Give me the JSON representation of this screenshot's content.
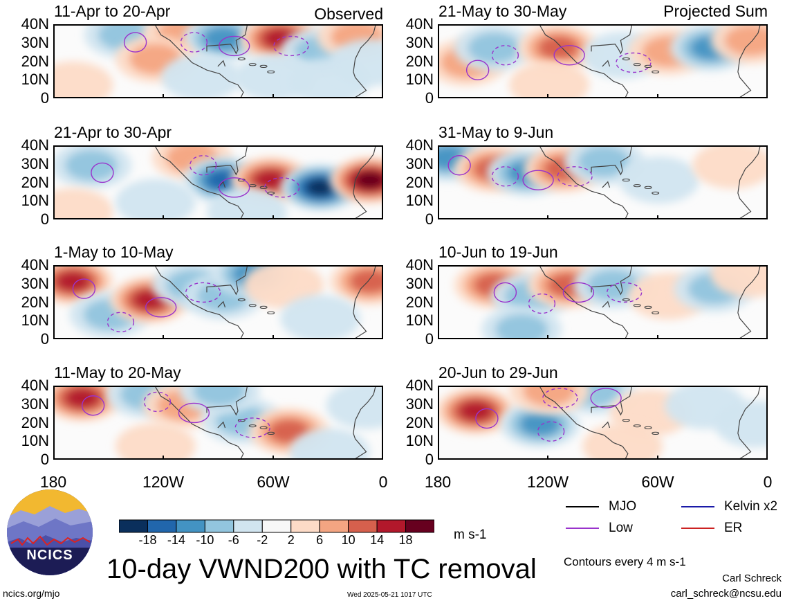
{
  "header": {
    "observed_label": "Observed",
    "projected_label": "Projected Sum"
  },
  "chart_data": [
    {
      "type": "heatmap",
      "title": "11-Apr to 20-Apr",
      "section": "observed",
      "anomalies": [
        {
          "lon": -142,
          "lat": 35,
          "v": -6
        },
        {
          "lon": -110,
          "lat": 35,
          "v": 8
        },
        {
          "lon": -88,
          "lat": 33,
          "v": -10
        },
        {
          "lon": -57,
          "lat": 33,
          "v": 14
        },
        {
          "lon": -35,
          "lat": 26,
          "v": -6
        },
        {
          "lon": -15,
          "lat": 34,
          "v": 8
        },
        {
          "lon": -170,
          "lat": 8,
          "v": 4
        },
        {
          "lon": -125,
          "lat": 22,
          "v": 6
        },
        {
          "lon": -100,
          "lat": 12,
          "v": -4
        },
        {
          "lon": -60,
          "lat": 12,
          "v": -4
        },
        {
          "lon": -30,
          "lat": 10,
          "v": -4
        },
        {
          "lon": -8,
          "lat": 20,
          "v": -4
        }
      ]
    },
    {
      "type": "heatmap",
      "title": "21-Apr to 30-Apr",
      "section": "observed",
      "anomalies": [
        {
          "lon": -160,
          "lat": 30,
          "v": -6
        },
        {
          "lon": -105,
          "lat": 34,
          "v": 8
        },
        {
          "lon": -88,
          "lat": 22,
          "v": -14
        },
        {
          "lon": -62,
          "lat": 22,
          "v": 16
        },
        {
          "lon": -35,
          "lat": 18,
          "v": -18
        },
        {
          "lon": -8,
          "lat": 22,
          "v": 18
        },
        {
          "lon": -170,
          "lat": 5,
          "v": 4
        },
        {
          "lon": -125,
          "lat": 10,
          "v": -4
        },
        {
          "lon": -75,
          "lat": 5,
          "v": -4
        }
      ]
    },
    {
      "type": "heatmap",
      "title": "1-May to 10-May",
      "section": "observed",
      "anomalies": [
        {
          "lon": -170,
          "lat": 32,
          "v": 14
        },
        {
          "lon": -150,
          "lat": 14,
          "v": -8
        },
        {
          "lon": -128,
          "lat": 22,
          "v": 14
        },
        {
          "lon": -105,
          "lat": 30,
          "v": -6
        },
        {
          "lon": -88,
          "lat": 24,
          "v": -8
        },
        {
          "lon": -72,
          "lat": 36,
          "v": -12
        },
        {
          "lon": -55,
          "lat": 30,
          "v": 4
        },
        {
          "lon": -8,
          "lat": 32,
          "v": 12
        },
        {
          "lon": -35,
          "lat": 12,
          "v": -4
        }
      ]
    },
    {
      "type": "heatmap",
      "title": "11-May to 20-May",
      "section": "observed",
      "anomalies": [
        {
          "lon": -165,
          "lat": 34,
          "v": 16
        },
        {
          "lon": -130,
          "lat": 36,
          "v": -8
        },
        {
          "lon": -110,
          "lat": 30,
          "v": 6
        },
        {
          "lon": -78,
          "lat": 22,
          "v": -8
        },
        {
          "lon": -52,
          "lat": 16,
          "v": 12
        },
        {
          "lon": -90,
          "lat": 38,
          "v": -6
        },
        {
          "lon": -10,
          "lat": 30,
          "v": -4
        },
        {
          "lon": -125,
          "lat": 8,
          "v": 4
        },
        {
          "lon": -30,
          "lat": 5,
          "v": -4
        }
      ]
    },
    {
      "type": "heatmap",
      "title": "21-May to 30-May",
      "section": "projected",
      "anomalies": [
        {
          "lon": -165,
          "lat": 20,
          "v": 6
        },
        {
          "lon": -150,
          "lat": 28,
          "v": -6
        },
        {
          "lon": -115,
          "lat": 28,
          "v": 12
        },
        {
          "lon": -80,
          "lat": 24,
          "v": -4
        },
        {
          "lon": -55,
          "lat": 26,
          "v": 6
        },
        {
          "lon": -32,
          "lat": 28,
          "v": -10
        },
        {
          "lon": -10,
          "lat": 32,
          "v": 6
        },
        {
          "lon": -120,
          "lat": 8,
          "v": 4
        }
      ]
    },
    {
      "type": "heatmap",
      "title": "31-May to 9-Jun",
      "section": "projected",
      "anomalies": [
        {
          "lon": -175,
          "lat": 34,
          "v": -12
        },
        {
          "lon": -150,
          "lat": 28,
          "v": 12
        },
        {
          "lon": -132,
          "lat": 26,
          "v": -10
        },
        {
          "lon": -112,
          "lat": 28,
          "v": 10
        },
        {
          "lon": -90,
          "lat": 32,
          "v": -6
        },
        {
          "lon": -60,
          "lat": 22,
          "v": -4
        },
        {
          "lon": -20,
          "lat": 30,
          "v": 4
        }
      ]
    },
    {
      "type": "heatmap",
      "title": "10-Jun to 19-Jun",
      "section": "projected",
      "anomalies": [
        {
          "lon": -150,
          "lat": 30,
          "v": 10
        },
        {
          "lon": -130,
          "lat": 24,
          "v": -6
        },
        {
          "lon": -110,
          "lat": 30,
          "v": 12
        },
        {
          "lon": -85,
          "lat": 30,
          "v": -6
        },
        {
          "lon": -55,
          "lat": 24,
          "v": 4
        },
        {
          "lon": -30,
          "lat": 28,
          "v": -6
        },
        {
          "lon": -135,
          "lat": 6,
          "v": -6
        },
        {
          "lon": -10,
          "lat": 36,
          "v": 4
        }
      ]
    },
    {
      "type": "heatmap",
      "title": "20-Jun to 29-Jun",
      "section": "projected",
      "anomalies": [
        {
          "lon": -160,
          "lat": 27,
          "v": 14
        },
        {
          "lon": -125,
          "lat": 20,
          "v": -10
        },
        {
          "lon": -95,
          "lat": 38,
          "v": -6
        },
        {
          "lon": -120,
          "lat": 38,
          "v": 6
        },
        {
          "lon": -65,
          "lat": 26,
          "v": 4
        },
        {
          "lon": -35,
          "lat": 30,
          "v": -4
        },
        {
          "lon": -8,
          "lat": 20,
          "v": -4
        },
        {
          "lon": -80,
          "lat": 8,
          "v": 4
        }
      ]
    }
  ],
  "axes": {
    "y_ticks": [
      "40N",
      "30N",
      "20N",
      "10N",
      "0"
    ],
    "x_ticks": [
      "180",
      "120W",
      "60W",
      "0"
    ],
    "lon_range": [
      -180,
      0
    ],
    "lat_range": [
      0,
      40
    ]
  },
  "colorbar": {
    "ticks": [
      "-18",
      "-14",
      "-10",
      "-6",
      "-2",
      "2",
      "6",
      "10",
      "14",
      "18"
    ],
    "colors": [
      "#0a2f5c",
      "#2166ac",
      "#4393c3",
      "#92c5de",
      "#d1e5f0",
      "#f7f7f7",
      "#fddbc7",
      "#f4a582",
      "#d6604d",
      "#b2182b",
      "#67001f"
    ],
    "units": "m s-1"
  },
  "legend": [
    {
      "label": "MJO",
      "color": "#000000"
    },
    {
      "label": "Kelvin x2",
      "color": "#1a1aa8"
    },
    {
      "label": "Low",
      "color": "#9933cc"
    },
    {
      "label": "ER",
      "color": "#cc2222"
    }
  ],
  "footer": {
    "title": "10-day VWND200 with TC removal",
    "contours_note": "Contours every 4 m s-1",
    "author": "Carl Schreck",
    "email": "carl_schreck@ncsu.edu",
    "url": "ncics.org/mjo",
    "timestamp": "Wed 2025-05-21 1017 UTC",
    "logo_text": "NCICS"
  }
}
